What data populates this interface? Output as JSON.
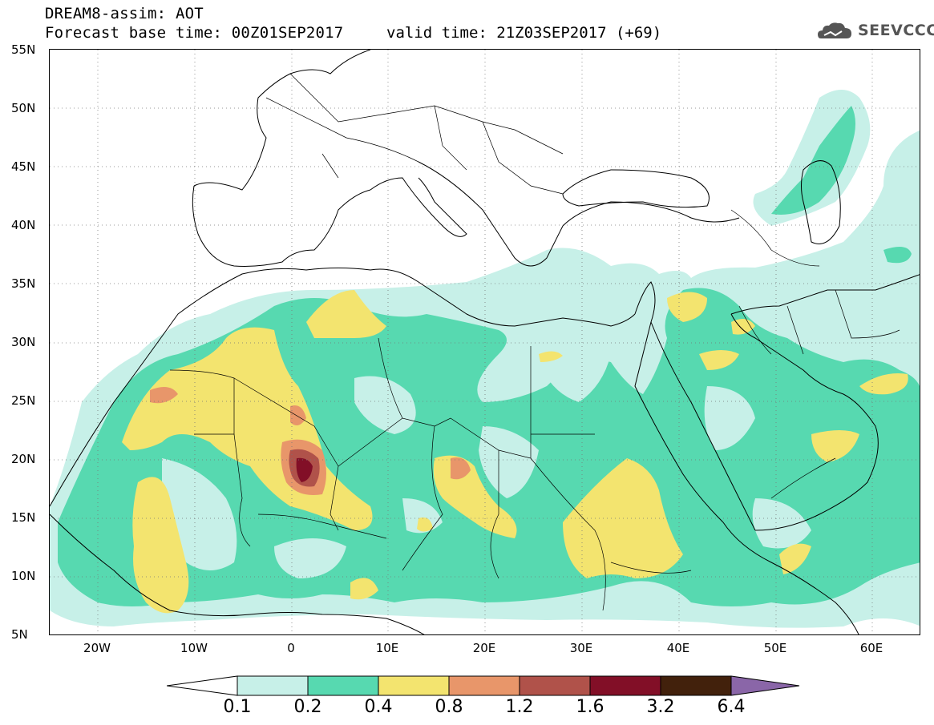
{
  "header": {
    "title": "DREAM8-assim: AOT",
    "base_time": "Forecast base time: 00Z01SEP2017",
    "valid_time": "valid time: 21Z03SEP2017 (+69)",
    "logo_text": "SEEVCCC",
    "logo_icon": "cloud-logo-icon"
  },
  "map": {
    "region": "North Africa, Europe, Middle East",
    "lat_labels": [
      "55N",
      "50N",
      "45N",
      "40N",
      "35N",
      "30N",
      "25N",
      "20N",
      "15N",
      "10N",
      "5N"
    ],
    "lon_labels": [
      "20W",
      "10W",
      "0",
      "10E",
      "20E",
      "30E",
      "40E",
      "50E",
      "60E"
    ],
    "grid": "dotted",
    "variable": "AOT"
  },
  "legend": {
    "levels": [
      "0.1",
      "0.2",
      "0.4",
      "0.8",
      "1.2",
      "1.6",
      "3.2",
      "6.4"
    ],
    "colors": [
      "#ffffff",
      "#c7f0e8",
      "#57d9b0",
      "#f3e46f",
      "#e8966a",
      "#b0524a",
      "#820f27",
      "#42210c",
      "#8a66a8"
    ]
  }
}
